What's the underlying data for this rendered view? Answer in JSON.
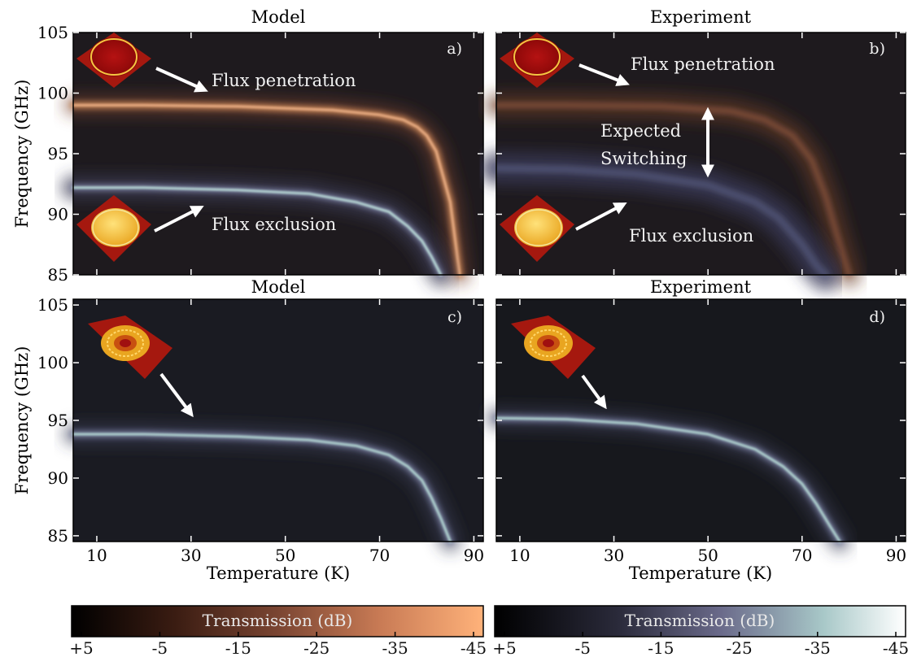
{
  "figure": {
    "xlabel": "Temperature (K)",
    "ylabel": "Frequency (GHz)",
    "x_ticks": [
      10,
      30,
      50,
      70,
      90
    ],
    "y_ticks": [
      85,
      90,
      95,
      100,
      105
    ]
  },
  "colors": {
    "copper_colormap": [
      "#000000",
      "#3a1c12",
      "#7a4532",
      "#c97b55",
      "#ffb27a"
    ],
    "bone_colormap": [
      "#000000",
      "#2a2a3a",
      "#6a6a8a",
      "#a8c8c8",
      "#ffffff"
    ]
  },
  "chart_data": [
    {
      "type": "heatmap",
      "id": "a",
      "title": "Model",
      "panel_label": "a)",
      "colormap": "copper",
      "xlim": [
        5,
        92
      ],
      "ylim": [
        85,
        105
      ],
      "ridges": [
        {
          "name": "",
          "x": [
            5,
            20,
            40,
            60,
            70,
            75,
            78,
            80,
            82,
            85,
            87
          ],
          "y": [
            99.0,
            99.0,
            98.9,
            98.6,
            98.2,
            97.8,
            97.2,
            96.5,
            95.2,
            91.0,
            85.0
          ]
        },
        {
          "name": "",
          "x": [
            5,
            20,
            40,
            55,
            65,
            72,
            76,
            79,
            81,
            83
          ],
          "y": [
            92.2,
            92.2,
            92.0,
            91.7,
            91.0,
            90.2,
            89.0,
            87.8,
            86.5,
            85.0
          ]
        }
      ],
      "annotations": [
        "Flux penetration",
        "Flux exclusion"
      ]
    },
    {
      "type": "heatmap",
      "id": "b",
      "title": "Experiment",
      "panel_label": "b)",
      "colormap": "copper",
      "xlim": [
        5,
        92
      ],
      "ylim": [
        85,
        105
      ],
      "ridges": [
        {
          "name": "",
          "x": [
            5,
            20,
            40,
            55,
            62,
            68,
            72,
            75,
            78,
            80
          ],
          "y": [
            99.0,
            99.0,
            98.9,
            98.5,
            97.8,
            96.5,
            94.5,
            91.5,
            87.5,
            85.0
          ]
        },
        {
          "name": "",
          "x": [
            5,
            20,
            35,
            50,
            60,
            65,
            70,
            73,
            75
          ],
          "y": [
            93.8,
            93.7,
            93.3,
            92.4,
            91.0,
            89.7,
            87.5,
            85.8,
            85.0
          ]
        }
      ],
      "annotations": [
        "Flux penetration",
        "Expected",
        "Switching",
        "Flux exclusion"
      ]
    },
    {
      "type": "heatmap",
      "id": "c",
      "title": "Model",
      "panel_label": "c)",
      "colormap": "bone",
      "xlim": [
        5,
        92
      ],
      "ylim": [
        84.5,
        105.5
      ],
      "ridges": [
        {
          "name": "",
          "x": [
            5,
            20,
            40,
            55,
            65,
            72,
            76,
            79,
            81,
            83,
            85
          ],
          "y": [
            93.8,
            93.8,
            93.6,
            93.3,
            92.8,
            92.0,
            91.0,
            89.8,
            88.3,
            86.5,
            84.5
          ]
        }
      ],
      "annotations": []
    },
    {
      "type": "heatmap",
      "id": "d",
      "title": "Experiment",
      "panel_label": "d)",
      "colormap": "bone",
      "xlim": [
        5,
        92
      ],
      "ylim": [
        84.5,
        105.5
      ],
      "ridges": [
        {
          "name": "",
          "x": [
            5,
            20,
            35,
            50,
            60,
            66,
            70,
            73,
            76,
            78
          ],
          "y": [
            95.2,
            95.1,
            94.7,
            93.8,
            92.5,
            91.0,
            89.5,
            87.8,
            85.8,
            84.5
          ]
        }
      ],
      "annotations": []
    }
  ],
  "colorbars": [
    {
      "id": "copper",
      "label": "Transmission (dB)",
      "ticks": [
        "+5",
        "-5",
        "-15",
        "-25",
        "-35",
        "-45"
      ]
    },
    {
      "id": "bone",
      "label": "Transmission (dB)",
      "ticks": [
        "+5",
        "-5",
        "-15",
        "-25",
        "-35",
        "-45"
      ]
    }
  ]
}
